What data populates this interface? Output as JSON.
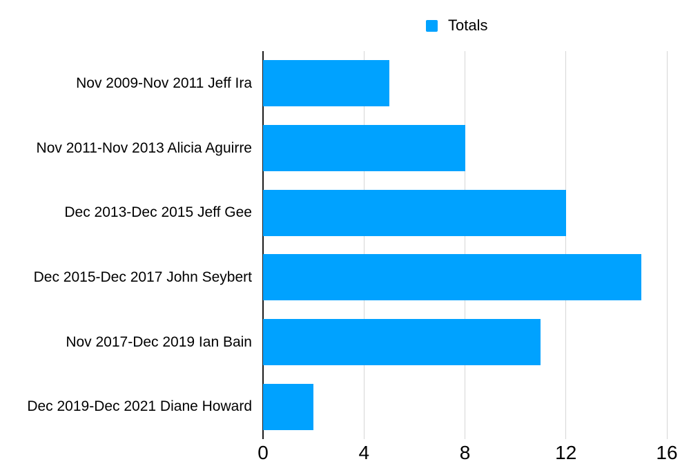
{
  "legend": {
    "label": "Totals"
  },
  "colors": {
    "bar": "#00A2FF",
    "gridline": "#D6D6D6",
    "axis_line": "#1A1A1A",
    "text": "#000000",
    "background": "#FFFFFF"
  },
  "chart_data": {
    "type": "bar",
    "orientation": "horizontal",
    "title": "",
    "xlabel": "",
    "ylabel": "",
    "categories": [
      "Nov 2009-Nov 2011 Jeff Ira",
      "Nov 2011-Nov 2013 Alicia Aguirre",
      "Dec 2013-Dec 2015 Jeff Gee",
      "Dec 2015-Dec 2017 John Seybert",
      "Nov 2017-Dec 2019 Ian Bain",
      "Dec 2019-Dec 2021 Diane Howard"
    ],
    "series": [
      {
        "name": "Totals",
        "values": [
          5,
          8,
          12,
          15,
          11,
          2
        ]
      }
    ],
    "xlim": [
      0,
      16
    ],
    "x_ticks": [
      0,
      4,
      8,
      12,
      16
    ],
    "grid": "vertical",
    "legend_position": "top"
  }
}
